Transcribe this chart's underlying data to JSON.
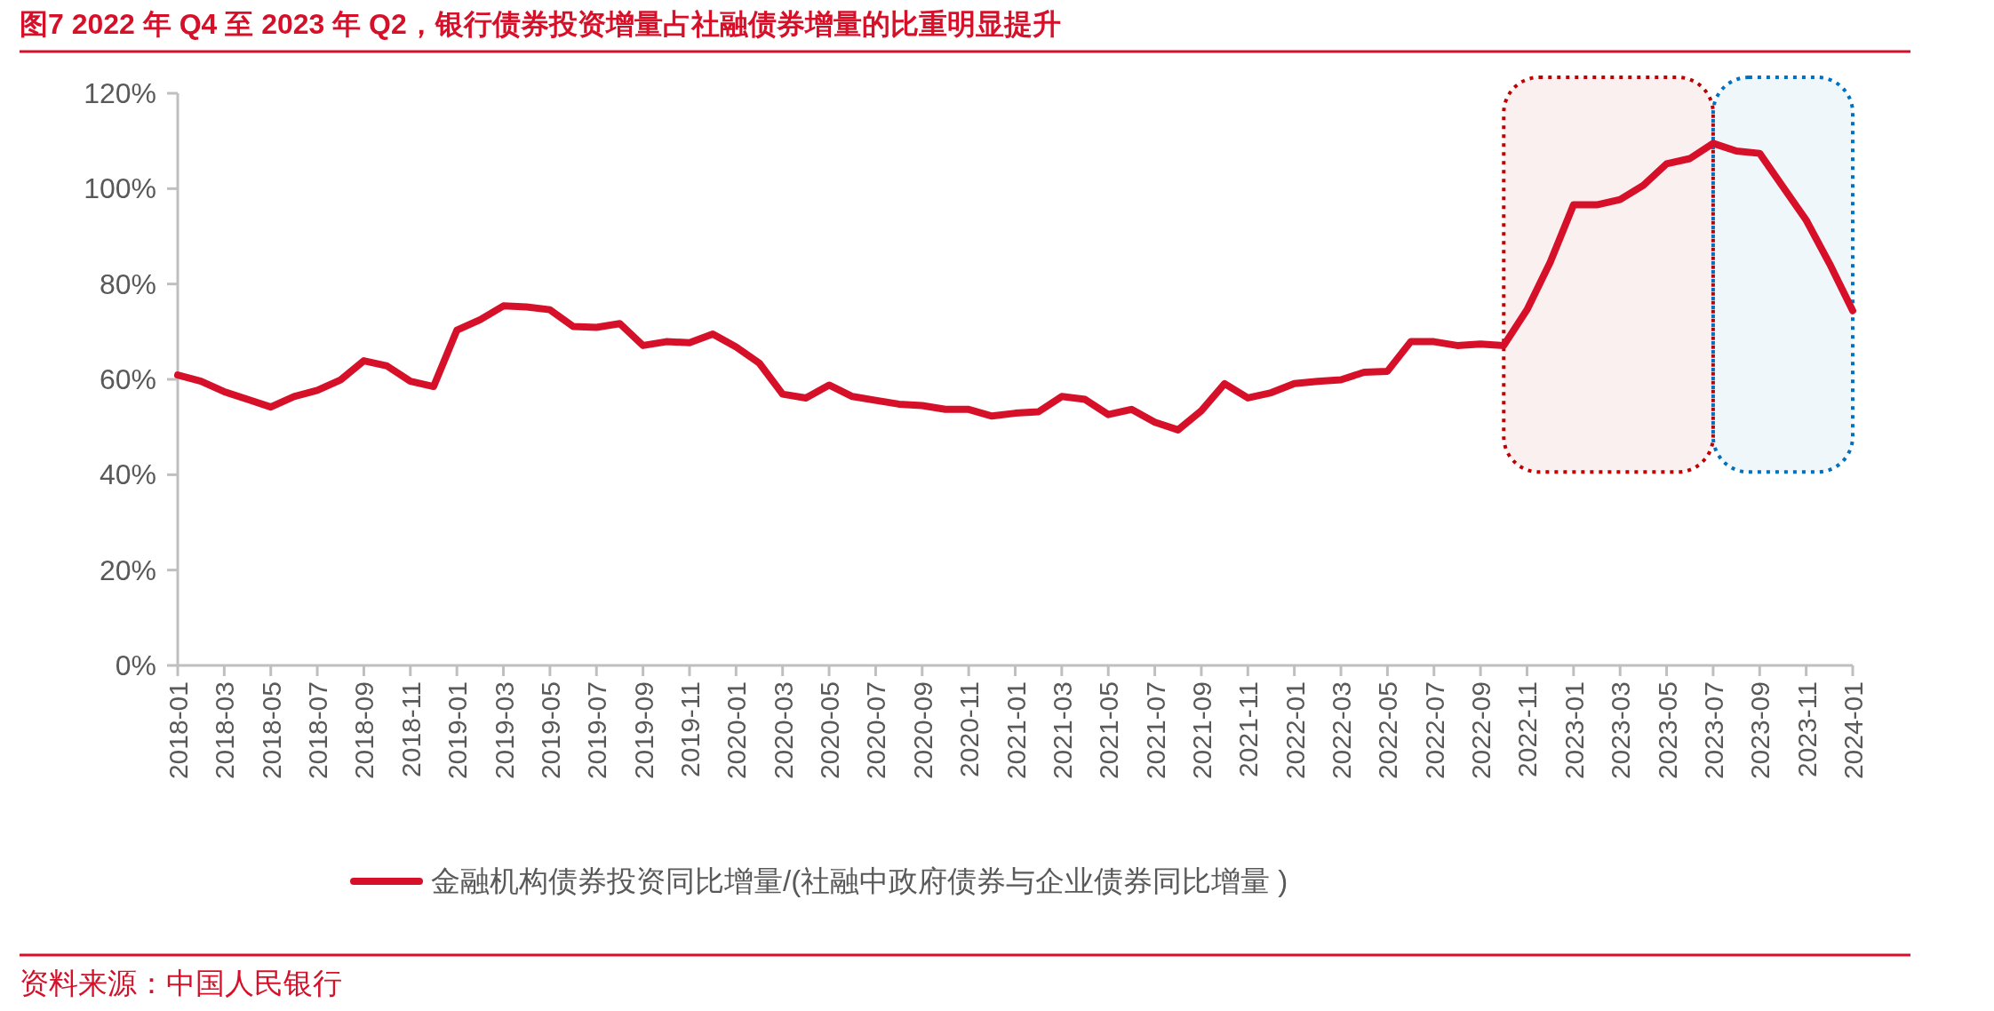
{
  "chart_data": {
    "type": "line",
    "title": "图7  2022 年 Q4 至 2023 年 Q2，银行债券投资增量占社融债券增量的比重明显提升",
    "annotations": [
      "资料来源：中国人民银行"
    ],
    "x": [
      "2018-01",
      "2018-02",
      "2018-03",
      "2018-04",
      "2018-05",
      "2018-06",
      "2018-07",
      "2018-08",
      "2018-09",
      "2018-10",
      "2018-11",
      "2018-12",
      "2019-01",
      "2019-02",
      "2019-03",
      "2019-04",
      "2019-05",
      "2019-06",
      "2019-07",
      "2019-08",
      "2019-09",
      "2019-10",
      "2019-11",
      "2019-12",
      "2020-01",
      "2020-02",
      "2020-03",
      "2020-04",
      "2020-05",
      "2020-06",
      "2020-07",
      "2020-08",
      "2020-09",
      "2020-10",
      "2020-11",
      "2020-12",
      "2021-01",
      "2021-02",
      "2021-03",
      "2021-04",
      "2021-05",
      "2021-06",
      "2021-07",
      "2021-08",
      "2021-09",
      "2021-10",
      "2021-11",
      "2021-12",
      "2022-01",
      "2022-02",
      "2022-03",
      "2022-04",
      "2022-05",
      "2022-06",
      "2022-07",
      "2022-08",
      "2022-09",
      "2022-10",
      "2022-11",
      "2022-12",
      "2023-01",
      "2023-02",
      "2023-03",
      "2023-04",
      "2023-05",
      "2023-06",
      "2023-07",
      "2023-08",
      "2023-09",
      "2023-10",
      "2023-11",
      "2023-12",
      "2024-01"
    ],
    "series": [
      {
        "name": "金融机构债券投资同比增量/(社融中政府债券与企业债券同比增量 )",
        "color": "#d7102a",
        "values": [
          60.9,
          59.6,
          57.4,
          55.8,
          54.2,
          56.4,
          57.7,
          59.9,
          63.9,
          62.8,
          59.6,
          58.5,
          70.3,
          72.5,
          75.4,
          75.2,
          74.6,
          71.1,
          70.9,
          71.7,
          67.1,
          67.9,
          67.7,
          69.5,
          66.8,
          63.4,
          56.9,
          56.1,
          58.8,
          56.4,
          55.6,
          54.8,
          54.5,
          53.7,
          53.7,
          52.3,
          52.9,
          53.2,
          56.4,
          55.8,
          52.6,
          53.7,
          51.0,
          49.4,
          53.4,
          59.1,
          56.1,
          57.2,
          59.1,
          59.6,
          59.9,
          61.5,
          61.7,
          67.9,
          67.9,
          67.1,
          67.4,
          67.1,
          74.6,
          84.6,
          96.6,
          96.6,
          97.7,
          100.7,
          105.2,
          106.3,
          109.5,
          107.9,
          107.4,
          100.4,
          93.4,
          84.3,
          74.4
        ]
      }
    ],
    "xlim": [
      "2018-01",
      "2024-01"
    ],
    "xticks": [
      "2018-01",
      "2018-03",
      "2018-05",
      "2018-07",
      "2018-09",
      "2018-11",
      "2019-01",
      "2019-03",
      "2019-05",
      "2019-07",
      "2019-09",
      "2019-11",
      "2020-01",
      "2020-03",
      "2020-05",
      "2020-07",
      "2020-09",
      "2020-11",
      "2021-01",
      "2021-03",
      "2021-05",
      "2021-07",
      "2021-09",
      "2021-11",
      "2022-01",
      "2022-03",
      "2022-05",
      "2022-07",
      "2022-09",
      "2022-11",
      "2023-01",
      "2023-03",
      "2023-05",
      "2023-07",
      "2023-09",
      "2023-11",
      "2024-01"
    ],
    "ylim": [
      0,
      120
    ],
    "yticks": [
      {
        "value": 0,
        "label": "0%"
      },
      {
        "value": 20,
        "label": "20%"
      },
      {
        "value": 40,
        "label": "40%"
      },
      {
        "value": 60,
        "label": "60%"
      },
      {
        "value": 80,
        "label": "80%"
      },
      {
        "value": 100,
        "label": "100%"
      },
      {
        "value": 120,
        "label": "120%"
      }
    ],
    "bands": [
      {
        "axis": "x",
        "from": "2022-10",
        "to": "2023-07",
        "color": "#c00000"
      },
      {
        "axis": "x",
        "from": "2023-07",
        "to": "2024-01",
        "color": "#0070c0"
      }
    ],
    "legend": "bottom",
    "marker": "none",
    "line_style": "solid"
  }
}
